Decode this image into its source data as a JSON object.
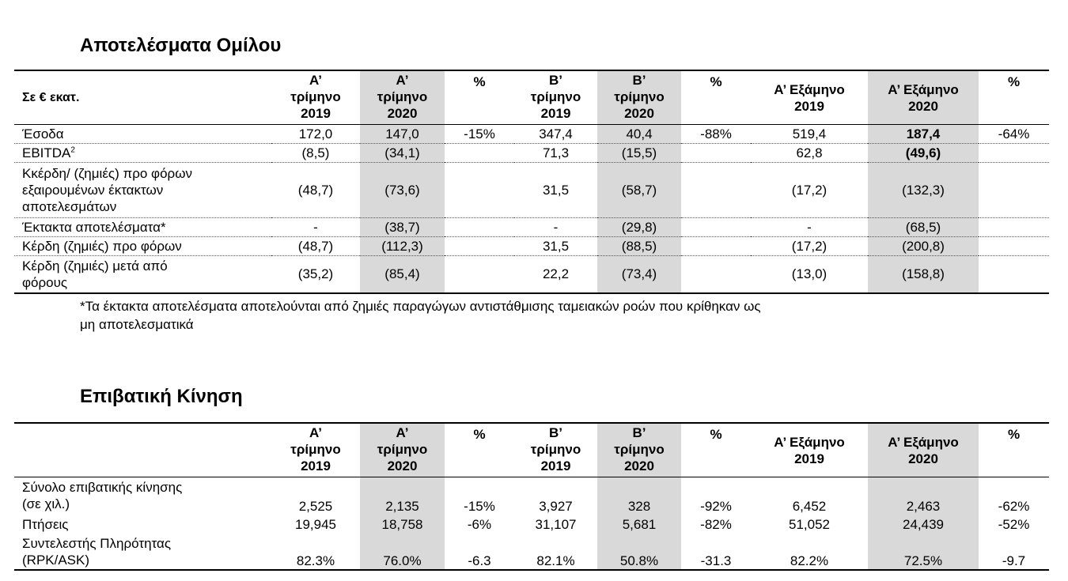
{
  "section1": {
    "title": "Αποτελέσματα Ομίλου",
    "unit_label": "Σε € εκατ.",
    "headers": [
      {
        "l1": "Α’",
        "l2": "τρίμηνο",
        "l3": "2019"
      },
      {
        "l1": "Α’",
        "l2": "τρίμηνο",
        "l3": "2020"
      },
      {
        "pct": "%"
      },
      {
        "l1": "Β’",
        "l2": "τρίμηνο",
        "l3": "2019"
      },
      {
        "l1": "Β’",
        "l2": "τρίμηνο",
        "l3": "2020"
      },
      {
        "pct": "%"
      },
      {
        "l1": "Α’ Εξάμηνο",
        "l2": "2019"
      },
      {
        "l1": "Α’ Εξάμηνο",
        "l2": "2020"
      },
      {
        "pct": "%"
      }
    ],
    "rows": [
      {
        "label": "Έσοδα",
        "values": [
          "172,0",
          "147,0",
          "-15%",
          "347,4",
          "40,4",
          "-88%",
          "519,4",
          "187,4",
          "-64%"
        ]
      },
      {
        "label": "EBITDA",
        "sup": "2",
        "values": [
          "(8,5)",
          "(34,1)",
          "",
          "71,3",
          "(15,5)",
          "",
          "62,8",
          "(49,6)",
          ""
        ]
      },
      {
        "label_lines": [
          "Κκέρδη/ (ζημιές) προ φόρων",
          "εξαιρουμένων έκτακτων",
          "αποτελεσμάτων"
        ],
        "values": [
          "(48,7)",
          "(73,6)",
          "",
          "31,5",
          "(58,7)",
          "",
          "(17,2)",
          "(132,3)",
          ""
        ]
      },
      {
        "label": "Έκτακτα αποτελέσματα*",
        "values": [
          "-",
          "(38,7)",
          "",
          "-",
          "(29,8)",
          "",
          "-",
          "(68,5)",
          ""
        ]
      },
      {
        "label": "Κέρδη (ζημιές) προ φόρων",
        "values": [
          "(48,7)",
          "(112,3)",
          "",
          "31,5",
          "(88,5)",
          "",
          "(17,2)",
          "(200,8)",
          ""
        ]
      },
      {
        "label_lines": [
          "Κέρδη (ζημιές) μετά από",
          "φόρους"
        ],
        "values": [
          "(35,2)",
          "(85,4)",
          "",
          "22,2",
          "(73,4)",
          "",
          "(13,0)",
          "(158,8)",
          ""
        ]
      }
    ],
    "footnote_line1": "*Τα έκτακτα αποτελέσματα αποτελούνται από ζημιές παραγώγων αντιστάθμισης ταμειακών ροών που κρίθηκαν ως",
    "footnote_line2": "μη αποτελεσματικά"
  },
  "section2": {
    "title": "Επιβατική Κίνηση",
    "rows": [
      {
        "label_lines": [
          "Σύνολο επιβατικής κίνησης",
          "(σε χιλ.)"
        ],
        "values": [
          "2,525",
          "2,135",
          "-15%",
          "3,927",
          "328",
          "-92%",
          "6,452",
          "2,463",
          "-62%"
        ]
      },
      {
        "label": "Πτήσεις",
        "values": [
          "19,945",
          "18,758",
          "-6%",
          "31,107",
          "5,681",
          "-82%",
          "51,052",
          "24,439",
          "-52%"
        ]
      },
      {
        "label_lines": [
          "Συντελεστής Πληρότητας",
          "(RPK/ASK)"
        ],
        "values": [
          "82.3%",
          "76.0%",
          "-6.3",
          "82.1%",
          "50.8%",
          "-31.3",
          "82.2%",
          "72.5%",
          "-9.7"
        ]
      }
    ]
  }
}
